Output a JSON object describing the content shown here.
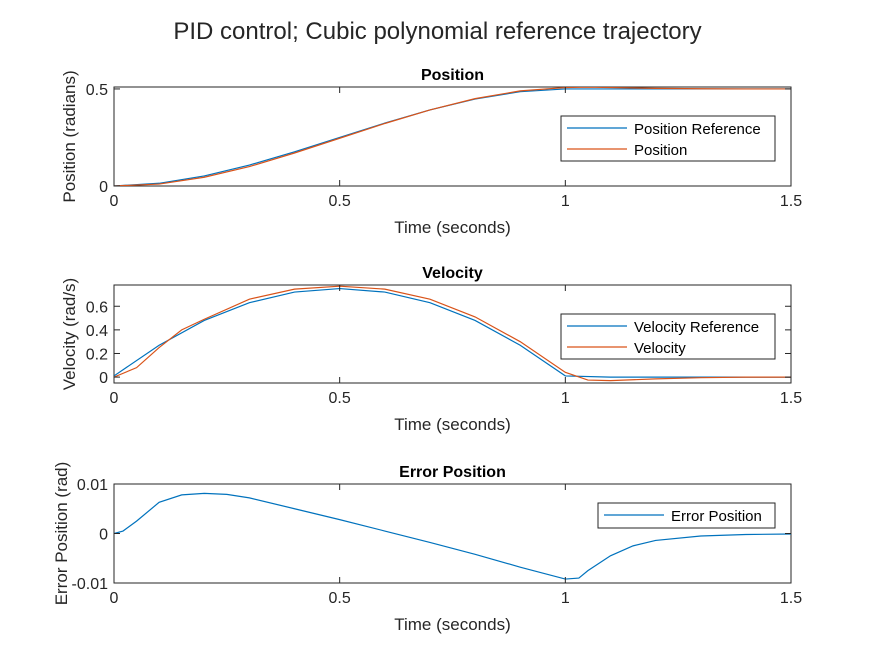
{
  "figure": {
    "suptitle": "PID control; Cubic polynomial reference trajectory"
  },
  "chart_data": [
    {
      "type": "line",
      "title": "Position",
      "xlabel": "Time (seconds)",
      "ylabel": "Position (radians)",
      "xlim": [
        0,
        1.5
      ],
      "ylim": [
        0,
        0.51
      ],
      "xticks": [
        0,
        0.5,
        1,
        1.5
      ],
      "xtick_labels": [
        "0",
        "0.5",
        "1",
        "1.5"
      ],
      "yticks": [
        0,
        0.5
      ],
      "ytick_labels": [
        "0",
        "0.5"
      ],
      "grid": false,
      "legend_position": "right",
      "series": [
        {
          "name": "Position Reference",
          "color": "#0072BD",
          "x": [
            0,
            0.1,
            0.2,
            0.3,
            0.4,
            0.5,
            0.6,
            0.7,
            0.8,
            0.9,
            1.0,
            1.1,
            1.2,
            1.3,
            1.4,
            1.5
          ],
          "y": [
            0,
            0.014,
            0.052,
            0.108,
            0.176,
            0.25,
            0.324,
            0.392,
            0.448,
            0.486,
            0.5,
            0.5,
            0.5,
            0.5,
            0.5,
            0.5
          ]
        },
        {
          "name": "Position",
          "color": "#D95319",
          "x": [
            0,
            0.1,
            0.2,
            0.3,
            0.4,
            0.5,
            0.6,
            0.7,
            0.8,
            0.9,
            1.0,
            1.05,
            1.1,
            1.2,
            1.3,
            1.4,
            1.5
          ],
          "y": [
            0,
            0.01,
            0.045,
            0.1,
            0.17,
            0.246,
            0.322,
            0.392,
            0.45,
            0.49,
            0.507,
            0.509,
            0.507,
            0.503,
            0.501,
            0.5,
            0.5
          ]
        }
      ]
    },
    {
      "type": "line",
      "title": "Velocity",
      "xlabel": "Time (seconds)",
      "ylabel": "Velocity (rad/s)",
      "xlim": [
        0,
        1.5
      ],
      "ylim": [
        -0.05,
        0.78
      ],
      "xticks": [
        0,
        0.5,
        1,
        1.5
      ],
      "xtick_labels": [
        "0",
        "0.5",
        "1",
        "1.5"
      ],
      "yticks": [
        0,
        0.2,
        0.4,
        0.6
      ],
      "ytick_labels": [
        "0",
        "0.2",
        "0.4",
        "0.6"
      ],
      "grid": false,
      "legend_position": "right",
      "series": [
        {
          "name": "Velocity Reference",
          "color": "#0072BD",
          "x": [
            0,
            0.1,
            0.2,
            0.3,
            0.4,
            0.5,
            0.6,
            0.7,
            0.8,
            0.9,
            1.0,
            1.1,
            1.2,
            1.3,
            1.4,
            1.5
          ],
          "y": [
            0.01,
            0.27,
            0.48,
            0.63,
            0.72,
            0.75,
            0.72,
            0.63,
            0.48,
            0.27,
            0.01,
            0.0,
            0.0,
            0.0,
            0.0,
            0.0
          ]
        },
        {
          "name": "Velocity",
          "color": "#D95319",
          "x": [
            0,
            0.05,
            0.1,
            0.15,
            0.2,
            0.3,
            0.4,
            0.5,
            0.6,
            0.7,
            0.8,
            0.9,
            1.0,
            1.05,
            1.1,
            1.2,
            1.3,
            1.4,
            1.5
          ],
          "y": [
            0.0,
            0.08,
            0.25,
            0.4,
            0.49,
            0.66,
            0.745,
            0.77,
            0.745,
            0.66,
            0.51,
            0.3,
            0.04,
            -0.025,
            -0.03,
            -0.015,
            -0.005,
            0.0,
            0.0
          ]
        }
      ]
    },
    {
      "type": "line",
      "title": "Error Position",
      "xlabel": "Time (seconds)",
      "ylabel": "Error Position (rad)",
      "xlim": [
        0,
        1.5
      ],
      "ylim": [
        -0.01,
        0.01
      ],
      "xticks": [
        0,
        0.5,
        1,
        1.5
      ],
      "xtick_labels": [
        "0",
        "0.5",
        "1",
        "1.5"
      ],
      "yticks": [
        -0.01,
        0,
        0.01
      ],
      "ytick_labels": [
        "-0.01",
        "0",
        "0.01"
      ],
      "grid": false,
      "legend_position": "top-right",
      "series": [
        {
          "name": "Error Position",
          "color": "#0072BD",
          "x": [
            0,
            0.02,
            0.05,
            0.1,
            0.15,
            0.2,
            0.25,
            0.3,
            0.4,
            0.5,
            0.6,
            0.7,
            0.8,
            0.9,
            1.0,
            1.03,
            1.05,
            1.1,
            1.15,
            1.2,
            1.3,
            1.4,
            1.5
          ],
          "y": [
            0,
            0.0005,
            0.0025,
            0.0063,
            0.0078,
            0.0081,
            0.0079,
            0.0072,
            0.005,
            0.0028,
            0.0005,
            -0.0018,
            -0.0042,
            -0.0068,
            -0.0092,
            -0.009,
            -0.0075,
            -0.0045,
            -0.0025,
            -0.0014,
            -0.0005,
            -0.0002,
            -0.0001
          ]
        }
      ]
    }
  ]
}
